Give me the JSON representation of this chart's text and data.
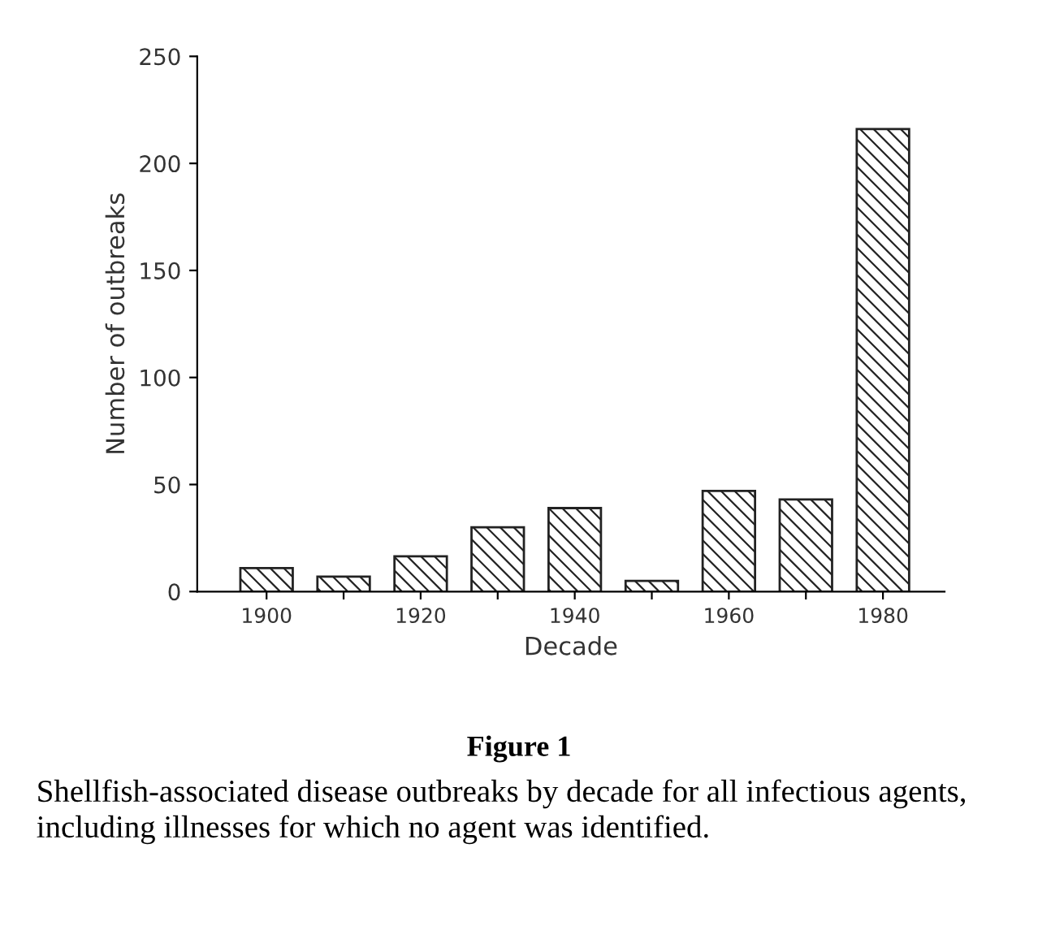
{
  "chart_data": {
    "type": "bar",
    "xlabel": "Decade",
    "ylabel": "Number of outbreaks",
    "categories": [
      "1900",
      null,
      "1920",
      null,
      "1940",
      null,
      "1960",
      null,
      "1980"
    ],
    "values": [
      11,
      7,
      16.5,
      30,
      39,
      5,
      47,
      43,
      216
    ],
    "color": "#222222",
    "ylim": [
      0,
      250
    ],
    "yticks": [
      0,
      50,
      100,
      150,
      200,
      250
    ],
    "grid": false,
    "annotations": [
      "Figure 1",
      "Shellfish-associated disease outbreaks by decade for all infectious agents, including illnesses for which no agent was identified."
    ]
  }
}
